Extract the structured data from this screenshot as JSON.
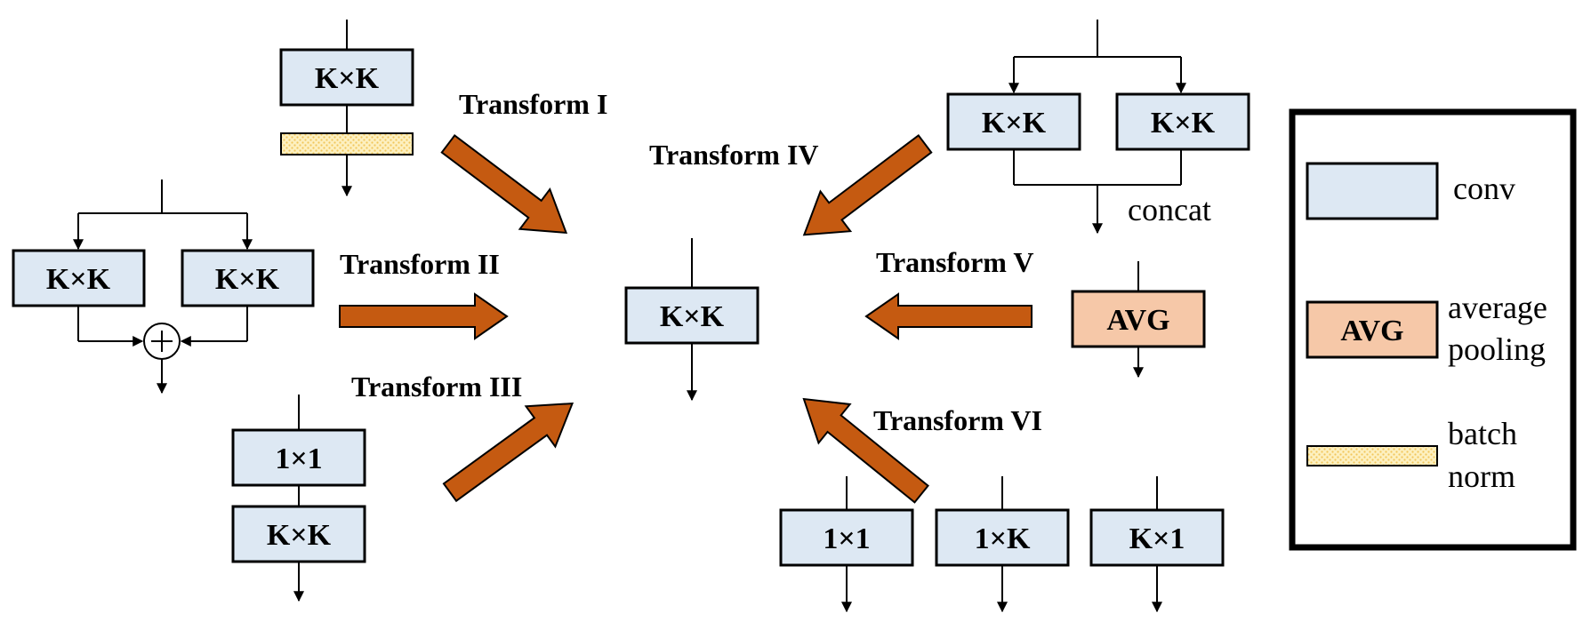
{
  "boxes": {
    "t1_conv": "K×K",
    "t2_left": "K×K",
    "t2_right": "K×K",
    "t3_top": "1×1",
    "t3_bottom": "K×K",
    "center": "K×K",
    "t4_left": "K×K",
    "t4_right": "K×K",
    "t5_avg": "AVG",
    "t6_a": "1×1",
    "t6_b": "1×K",
    "t6_c": "K×1"
  },
  "transforms": {
    "t1": "Transform I",
    "t2": "Transform II",
    "t3": "Transform III",
    "t4": "Transform IV",
    "t5": "Transform V",
    "t6": "Transform VI"
  },
  "t4_concat_label": "concat",
  "legend": {
    "conv_label": "conv",
    "avg_swatch_text": "AVG",
    "avg_label_line1": "average",
    "avg_label_line2": "pooling",
    "bn_label_line1": "batch",
    "bn_label_line2": "norm"
  },
  "colors": {
    "conv_fill": "#dde8f3",
    "avg_fill": "#f6c8a8",
    "bn_fill": "#fde9a8",
    "arrow_fill": "#c55a11"
  }
}
